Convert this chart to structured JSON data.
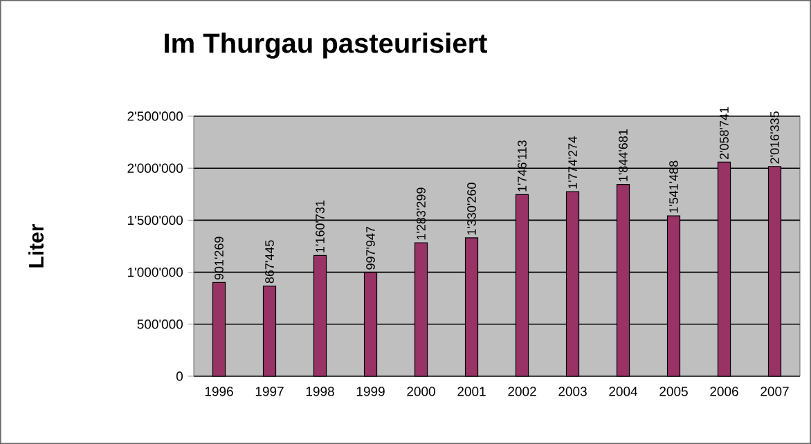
{
  "chart_data": {
    "type": "bar",
    "title": "Im Thurgau pasteurisiert",
    "ylabel": "Liter",
    "categories": [
      "1996",
      "1997",
      "1998",
      "1999",
      "2000",
      "2001",
      "2002",
      "2003",
      "2004",
      "2005",
      "2006",
      "2007"
    ],
    "values": [
      901269,
      867445,
      1160731,
      997947,
      1283299,
      1330260,
      1746113,
      1774274,
      1844681,
      1541488,
      2058741,
      2016335
    ],
    "value_labels": [
      "901'269",
      "867'445",
      "1'160'731",
      "997'947",
      "1'283'299",
      "1'330'260",
      "1'746'113",
      "1'774'274",
      "1'844'681",
      "1'541'488",
      "2'058'741",
      "2'016'335"
    ],
    "color": "#993366",
    "ylim": [
      0,
      2500000
    ],
    "yticks": [
      0,
      {
        "value": 500000,
        "label": "500'000"
      },
      {
        "value": 1000000,
        "label": "1'000'000"
      },
      {
        "value": 1500000,
        "label": "1'500'000"
      },
      {
        "value": 2000000,
        "label": "2'000'000"
      },
      {
        "value": 2500000,
        "label": "2'500'000"
      }
    ],
    "grid": "y"
  }
}
